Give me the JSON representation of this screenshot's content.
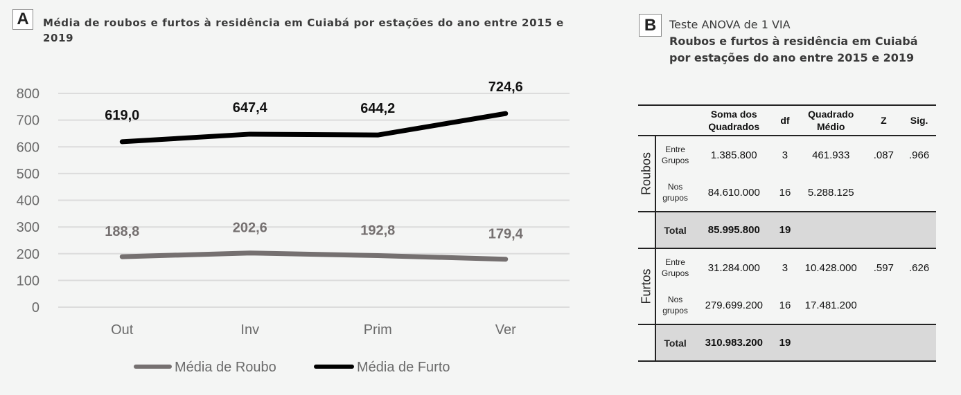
{
  "panel_a": {
    "letter": "A",
    "title": "Média de roubos e furtos à residência em Cuiabá por estações do ano entre 2015 e 2019"
  },
  "panel_b": {
    "letter": "B",
    "title_line1": "Teste ANOVA de 1 VIA",
    "title_line2": "Roubos e furtos à residência em Cuiabá",
    "title_line3": "por estações do ano entre 2015 e 2019"
  },
  "chart_data": [
    {
      "type": "line",
      "title": "Média de roubos e furtos à residência em Cuiabá por estações do ano entre 2015 e 2019",
      "categories": [
        "Out",
        "Inv",
        "Prim",
        "Ver"
      ],
      "series": [
        {
          "name": "Média de Roubo",
          "values": [
            188.8,
            202.6,
            192.8,
            179.4
          ],
          "labels": [
            "188,8",
            "202,6",
            "192,8",
            "179,4"
          ],
          "color": "#757070"
        },
        {
          "name": "Média de Furto",
          "values": [
            619.0,
            647.4,
            644.2,
            724.6
          ],
          "labels": [
            "619,0",
            "647,4",
            "644,2",
            "724,6"
          ],
          "color": "#000000"
        }
      ],
      "xlabel": "",
      "ylabel": "",
      "ylim": [
        0,
        800
      ],
      "yticks": [
        "0",
        "100",
        "200",
        "300",
        "400",
        "500",
        "600",
        "700",
        "800"
      ],
      "grid": true,
      "legend_position": "bottom"
    },
    {
      "type": "table",
      "title": "Teste ANOVA de 1 VIA - Roubos e furtos à residência em Cuiabá por estações do ano entre 2015 e 2019",
      "columns": [
        "",
        "",
        "Soma dos Quadrados",
        "df",
        "Quadrado Médio",
        "Z",
        "Sig."
      ],
      "rows": [
        [
          "Roubos",
          "Entre Grupos",
          "1.385.800",
          "3",
          "461.933",
          ".087",
          ".966"
        ],
        [
          "Roubos",
          "Nos grupos",
          "84.610.000",
          "16",
          "5.288.125",
          "",
          ""
        ],
        [
          "Roubos",
          "Total",
          "85.995.800",
          "19",
          "",
          "",
          ""
        ],
        [
          "Furtos",
          "Entre Grupos",
          "31.284.000",
          "3",
          "10.428.000",
          ".597",
          ".626"
        ],
        [
          "Furtos",
          "Nos grupos",
          "279.699.200",
          "16",
          "17.481.200",
          "",
          ""
        ],
        [
          "Furtos",
          "Total",
          "310.983.200",
          "19",
          "",
          "",
          ""
        ]
      ]
    }
  ],
  "table": {
    "headers": {
      "ss": "Soma dos Quadrados",
      "df": "df",
      "ms": "Quadrado Médio",
      "z": "Z",
      "sig": "Sig."
    },
    "groups": [
      {
        "name": "Roubos",
        "rows": [
          {
            "label": "Entre Grupos",
            "ss": "1.385.800",
            "df": "3",
            "ms": "461.933",
            "z": ".087",
            "sig": ".966"
          },
          {
            "label": "Nos grupos",
            "ss": "84.610.000",
            "df": "16",
            "ms": "5.288.125",
            "z": "",
            "sig": ""
          }
        ],
        "total": {
          "label": "Total",
          "ss": "85.995.800",
          "df": "19"
        }
      },
      {
        "name": "Furtos",
        "rows": [
          {
            "label": "Entre Grupos",
            "ss": "31.284.000",
            "df": "3",
            "ms": "10.428.000",
            "z": ".597",
            "sig": ".626"
          },
          {
            "label": "Nos grupos",
            "ss": "279.699.200",
            "df": "16",
            "ms": "17.481.200",
            "z": "",
            "sig": ""
          }
        ],
        "total": {
          "label": "Total",
          "ss": "310.983.200",
          "df": "19"
        }
      }
    ]
  }
}
